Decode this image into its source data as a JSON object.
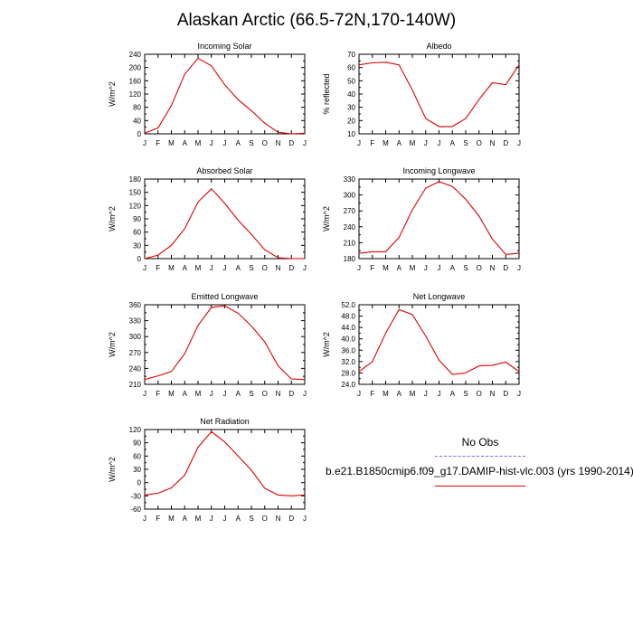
{
  "title": "Alaskan Arctic (66.5-72N,170-140W)",
  "months": [
    "J",
    "F",
    "M",
    "A",
    "M",
    "J",
    "J",
    "A",
    "S",
    "O",
    "N",
    "D",
    "J"
  ],
  "line_color": "#e00000",
  "obs_line_color": "#6c6cff",
  "legend": {
    "obs_label": "No Obs",
    "model_label": "b.e21.B1850cmip6.f09_g17.DAMIP-hist-vlc.003 (yrs 1990-2014)"
  },
  "chart_data": [
    {
      "type": "line",
      "title": "Incoming Solar",
      "ylabel": "W/m^2",
      "ylim": [
        0,
        240
      ],
      "yticks": [
        "0",
        "40",
        "80",
        "120",
        "160",
        "200",
        "240"
      ],
      "x": [
        "J",
        "F",
        "M",
        "A",
        "M",
        "J",
        "J",
        "A",
        "S",
        "O",
        "N",
        "D",
        "J"
      ],
      "values": [
        2,
        18,
        85,
        180,
        228,
        205,
        148,
        103,
        70,
        32,
        5,
        0,
        2
      ]
    },
    {
      "type": "line",
      "title": "Albedo",
      "ylabel": "% reflected",
      "ylim": [
        10,
        70
      ],
      "yticks": [
        "10",
        "20",
        "30",
        "40",
        "50",
        "60",
        "70"
      ],
      "x": [
        "J",
        "F",
        "M",
        "A",
        "M",
        "J",
        "J",
        "A",
        "S",
        "O",
        "N",
        "D",
        "J"
      ],
      "values": [
        62,
        63.5,
        64,
        62,
        43,
        21.5,
        15.5,
        15.5,
        21.5,
        36,
        48.5,
        47,
        62
      ]
    },
    {
      "type": "line",
      "title": "Absorbed Solar",
      "ylabel": "W/m^2",
      "ylim": [
        0,
        180
      ],
      "yticks": [
        "0",
        "30",
        "60",
        "90",
        "120",
        "150",
        "180"
      ],
      "x": [
        "J",
        "F",
        "M",
        "A",
        "M",
        "J",
        "J",
        "A",
        "S",
        "O",
        "N",
        "D",
        "J"
      ],
      "values": [
        0,
        8,
        30,
        68,
        128,
        158,
        125,
        87,
        55,
        20,
        2,
        0,
        0
      ]
    },
    {
      "type": "line",
      "title": "Incoming Longwave",
      "ylabel": "W/m^2",
      "ylim": [
        180,
        330
      ],
      "yticks": [
        "180",
        "210",
        "240",
        "270",
        "300",
        "330"
      ],
      "x": [
        "J",
        "F",
        "M",
        "A",
        "M",
        "J",
        "J",
        "A",
        "S",
        "O",
        "N",
        "D",
        "J"
      ],
      "values": [
        190,
        193,
        193,
        220,
        272,
        313,
        325,
        316,
        292,
        260,
        217,
        188,
        190
      ]
    },
    {
      "type": "line",
      "title": "Emitted Longwave",
      "ylabel": "W/m^2",
      "ylim": [
        210,
        360
      ],
      "yticks": [
        "210",
        "240",
        "270",
        "300",
        "330",
        "360"
      ],
      "x": [
        "J",
        "F",
        "M",
        "A",
        "M",
        "J",
        "J",
        "A",
        "S",
        "O",
        "N",
        "D",
        "J"
      ],
      "values": [
        219,
        226,
        234,
        268,
        321,
        355,
        358,
        344,
        320,
        290,
        245,
        220,
        219
      ]
    },
    {
      "type": "line",
      "title": "Net Longwave",
      "ylabel": "W/m^2",
      "ylim": [
        24,
        52
      ],
      "yticks": [
        "24.0",
        "28.0",
        "32.0",
        "36.0",
        "40.0",
        "44.0",
        "48.0",
        "52.0"
      ],
      "x": [
        "J",
        "F",
        "M",
        "A",
        "M",
        "J",
        "J",
        "A",
        "S",
        "O",
        "N",
        "D",
        "J"
      ],
      "values": [
        28.5,
        32,
        42,
        50.3,
        48.5,
        41,
        32.5,
        27.5,
        28,
        30.5,
        30.7,
        31.8,
        28.5
      ]
    },
    {
      "type": "line",
      "title": "Net Radiation",
      "ylabel": "W/m^2",
      "ylim": [
        -60,
        120
      ],
      "yticks": [
        "-60",
        "-30",
        "0",
        "30",
        "60",
        "90",
        "120"
      ],
      "x": [
        "J",
        "F",
        "M",
        "A",
        "M",
        "J",
        "J",
        "A",
        "S",
        "O",
        "N",
        "D",
        "J"
      ],
      "values": [
        -28,
        -24,
        -12,
        17,
        80,
        115,
        92,
        60,
        28,
        -13,
        -28,
        -30,
        -28
      ]
    }
  ]
}
